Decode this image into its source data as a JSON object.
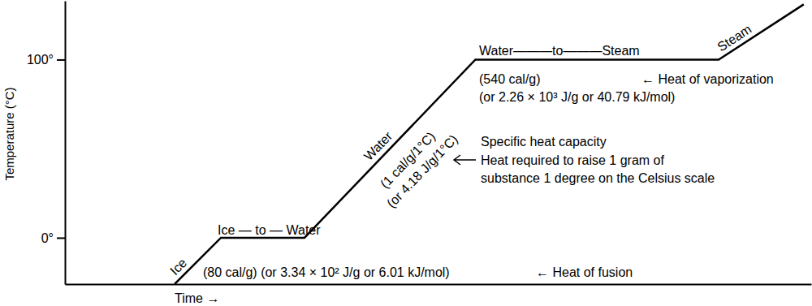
{
  "chart_data": {
    "type": "line",
    "x_label": "Time →",
    "y_label": "Temperature (°C)",
    "x": [
      14.7,
      20.9,
      32.1,
      55,
      87.6,
      99
    ],
    "values": [
      -26,
      0,
      0,
      100,
      100,
      131
    ],
    "color": "#000000",
    "xlim": [
      0,
      100
    ],
    "xticks": [],
    "ylim": [
      -26,
      133
    ],
    "yticks": [
      {
        "value": 0,
        "label": "0°"
      },
      {
        "value": 100,
        "label": "100°"
      }
    ],
    "tick_labels": "y",
    "grid": false,
    "annotations": [
      "Ice",
      "Ice — to — Water",
      "Water",
      "(1 cal/g/1°C)",
      "(or 4.18 J/g/1°C)",
      "Specific heat capacity",
      "Heat required to raise 1 gram of",
      "substance 1 degree on the Celsius scale",
      "Water———to———Steam",
      "Steam",
      "(540 cal/g)",
      "← Heat of vaporization",
      "(or 2.26 × 10³ J/g or 40.79 kJ/mol)",
      "(80 cal/g) (or 3.34 × 10² J/g or 6.01 kJ/mol)",
      "← Heat of fusion"
    ]
  }
}
